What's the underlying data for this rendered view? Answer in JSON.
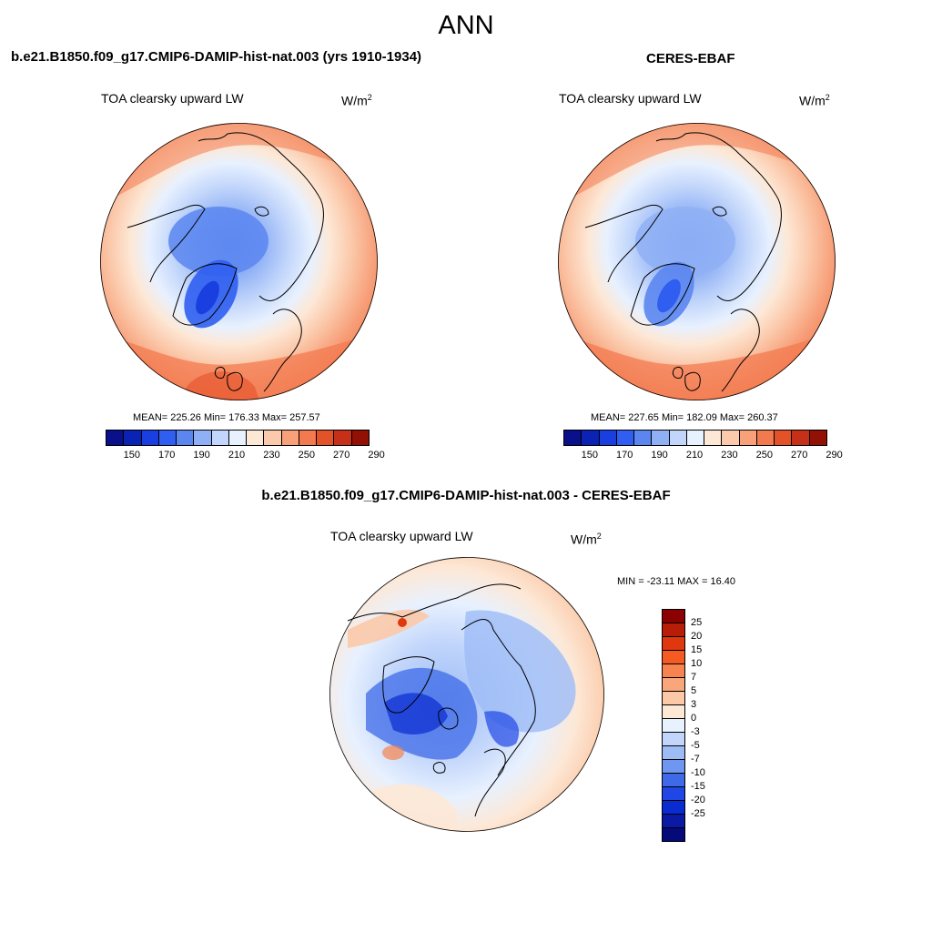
{
  "figure": {
    "title": "ANN",
    "diff_title": "b.e21.B1850.f09_g17.CMIP6-DAMIP-hist-nat.003 - CERES-EBAF"
  },
  "panels": [
    {
      "title": "b.e21.B1850.f09_g17.CMIP6-DAMIP-hist-nat.003 (yrs 1910-1934)",
      "variable": "TOA clearsky upward LW",
      "units_base": "W/m",
      "units_exp": "2",
      "stats": "MEAN= 225.26  Min= 176.33  Max= 257.57",
      "mean": 225.26,
      "min": 176.33,
      "max": 257.57
    },
    {
      "title": "CERES-EBAF",
      "variable": "TOA clearsky upward LW",
      "units_base": "W/m",
      "units_exp": "2",
      "stats": "MEAN= 227.65  Min= 182.09  Max= 260.37",
      "mean": 227.65,
      "min": 182.09,
      "max": 260.37
    }
  ],
  "diff_panel": {
    "variable": "TOA clearsky upward LW",
    "units_base": "W/m",
    "units_exp": "2",
    "stats": "MIN = -23.11 MAX =  16.40",
    "min": -23.11,
    "max": 16.4
  },
  "abs_colorbar": {
    "colors": [
      "#0a0f8a",
      "#0a23b4",
      "#1a3fe0",
      "#2f5ef0",
      "#5b86f0",
      "#8fb0f5",
      "#c2d6fb",
      "#e8f1fe",
      "#fde8d6",
      "#fbc9ab",
      "#f7a07a",
      "#f37a4f",
      "#e4522a",
      "#c63018",
      "#921004"
    ],
    "tick_labels": [
      "150",
      "170",
      "190",
      "210",
      "230",
      "250",
      "270",
      "290"
    ]
  },
  "diff_colorbar": {
    "colors_top_to_bottom": [
      "#8b0000",
      "#b81d08",
      "#e0380e",
      "#f55a22",
      "#f7834f",
      "#f9a77a",
      "#fbc9a8",
      "#fde8d6",
      "#e8f1fe",
      "#c2d6fb",
      "#9dbcf6",
      "#6f96f0",
      "#3e6ae8",
      "#2047e6",
      "#0a2bd0",
      "#0a1aa5",
      "#050a7a"
    ],
    "tick_labels": [
      "25",
      "20",
      "15",
      "10",
      "7",
      "5",
      "3",
      "0",
      "-3",
      "-5",
      "-7",
      "-10",
      "-15",
      "-20",
      "-25"
    ]
  },
  "colors": {
    "ocean_warm": "#f7a07a",
    "coastline": "#000000"
  }
}
